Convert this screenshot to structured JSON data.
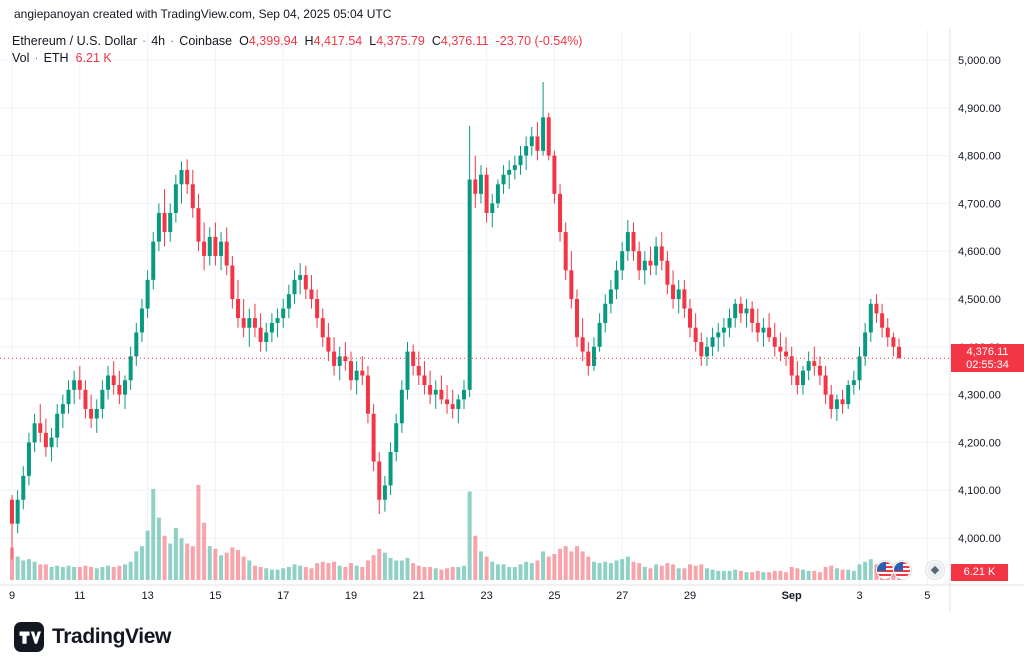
{
  "attribution": "angiepanoyan created with TradingView.com, Sep 04, 2025 05:04 UTC",
  "legend": {
    "symbol": "Ethereum / U.S. Dollar",
    "sep1": "·",
    "interval": "4h",
    "sep2": "·",
    "exchange": "Coinbase",
    "o_label": "O",
    "o_value": "4,399.94",
    "h_label": "H",
    "h_value": "4,417.54",
    "l_label": "L",
    "l_value": "4,375.79",
    "c_label": "C",
    "c_value": "4,376.11",
    "change": "-23.70 (-0.54%)",
    "vol_label": "Vol",
    "vol_sep": "·",
    "vol_symbol": "ETH",
    "vol_value": "6.21 K"
  },
  "badges": {
    "price": "4,376.11",
    "countdown": "02:55:34",
    "volume": "6.21 K"
  },
  "logo_text": "TradingView",
  "chart_data": {
    "type": "candlestick",
    "title": "Ethereum / U.S. Dollar",
    "interval": "4h",
    "exchange": "Coinbase",
    "ylim": [
      4000,
      5000
    ],
    "grid": true,
    "last_price": 4376.11,
    "countdown": "02:55:34",
    "last_volume_label": "6.21 K",
    "volume_units": "K ETH",
    "colors": {
      "up": "#089981",
      "down": "#f23645",
      "volume_up": "rgba(8,153,129,0.45)",
      "volume_down": "rgba(242,54,69,0.45)",
      "grid": "#f0f3fa",
      "border": "#e0e3eb",
      "axis_text": "#131722",
      "badge_bg": "#f23645",
      "last_price_line": "#f23645"
    },
    "price_axis_ticks": [
      {
        "value": 5000,
        "label": "5,000.00"
      },
      {
        "value": 4900,
        "label": "4,900.00"
      },
      {
        "value": 4800,
        "label": "4,800.00"
      },
      {
        "value": 4700,
        "label": "4,700.00"
      },
      {
        "value": 4600,
        "label": "4,600.00"
      },
      {
        "value": 4500,
        "label": "4,500.00"
      },
      {
        "value": 4400,
        "label": "4,400.00"
      },
      {
        "value": 4300,
        "label": "4,300.00"
      },
      {
        "value": 4200,
        "label": "4,200.00"
      },
      {
        "value": 4100,
        "label": "4,100.00"
      },
      {
        "value": 4000,
        "label": "4,000.00"
      }
    ],
    "time_axis_labels": [
      {
        "text": "9",
        "index": 0
      },
      {
        "text": "11",
        "index": 12
      },
      {
        "text": "13",
        "index": 24
      },
      {
        "text": "15",
        "index": 36
      },
      {
        "text": "17",
        "index": 48
      },
      {
        "text": "19",
        "index": 60
      },
      {
        "text": "21",
        "index": 72
      },
      {
        "text": "23",
        "index": 84
      },
      {
        "text": "25",
        "index": 96
      },
      {
        "text": "27",
        "index": 108
      },
      {
        "text": "29",
        "index": 120
      },
      {
        "text": "Sep",
        "index": 138,
        "bold": true
      },
      {
        "text": "3",
        "index": 150
      },
      {
        "text": "5",
        "index": 162
      }
    ],
    "candles": [
      [
        4080,
        4090,
        3955,
        4030,
        25
      ],
      [
        4030,
        4100,
        4010,
        4080,
        18
      ],
      [
        4080,
        4150,
        4060,
        4130,
        15
      ],
      [
        4130,
        4220,
        4110,
        4200,
        16
      ],
      [
        4200,
        4260,
        4180,
        4240,
        14
      ],
      [
        4240,
        4280,
        4200,
        4220,
        12
      ],
      [
        4220,
        4250,
        4170,
        4190,
        12
      ],
      [
        4190,
        4230,
        4160,
        4210,
        10
      ],
      [
        4210,
        4280,
        4190,
        4260,
        11
      ],
      [
        4260,
        4300,
        4230,
        4280,
        10
      ],
      [
        4280,
        4330,
        4260,
        4310,
        11
      ],
      [
        4310,
        4350,
        4280,
        4330,
        10
      ],
      [
        4330,
        4360,
        4290,
        4310,
        10
      ],
      [
        4310,
        4330,
        4250,
        4270,
        11
      ],
      [
        4270,
        4300,
        4230,
        4250,
        10
      ],
      [
        4250,
        4290,
        4220,
        4270,
        9
      ],
      [
        4270,
        4330,
        4250,
        4310,
        10
      ],
      [
        4310,
        4360,
        4290,
        4340,
        11
      ],
      [
        4340,
        4370,
        4300,
        4320,
        10
      ],
      [
        4320,
        4350,
        4280,
        4300,
        11
      ],
      [
        4300,
        4340,
        4270,
        4330,
        12
      ],
      [
        4330,
        4400,
        4310,
        4380,
        14
      ],
      [
        4380,
        4450,
        4360,
        4430,
        22
      ],
      [
        4430,
        4500,
        4410,
        4480,
        26
      ],
      [
        4480,
        4560,
        4460,
        4540,
        38
      ],
      [
        4540,
        4640,
        4520,
        4620,
        70
      ],
      [
        4620,
        4700,
        4600,
        4680,
        48
      ],
      [
        4680,
        4730,
        4610,
        4640,
        34
      ],
      [
        4640,
        4700,
        4620,
        4680,
        28
      ],
      [
        4680,
        4760,
        4660,
        4740,
        40
      ],
      [
        4740,
        4788,
        4700,
        4770,
        32
      ],
      [
        4770,
        4792,
        4720,
        4740,
        28
      ],
      [
        4740,
        4770,
        4670,
        4690,
        26
      ],
      [
        4690,
        4720,
        4600,
        4620,
        73
      ],
      [
        4620,
        4660,
        4560,
        4590,
        44
      ],
      [
        4590,
        4650,
        4570,
        4630,
        26
      ],
      [
        4630,
        4660,
        4570,
        4590,
        24
      ],
      [
        4590,
        4640,
        4560,
        4620,
        19
      ],
      [
        4620,
        4650,
        4550,
        4570,
        21
      ],
      [
        4570,
        4590,
        4480,
        4500,
        25
      ],
      [
        4500,
        4540,
        4440,
        4460,
        23
      ],
      [
        4460,
        4500,
        4420,
        4440,
        18
      ],
      [
        4440,
        4480,
        4400,
        4460,
        15
      ],
      [
        4460,
        4490,
        4420,
        4440,
        11
      ],
      [
        4440,
        4470,
        4390,
        4410,
        10
      ],
      [
        4410,
        4450,
        4390,
        4430,
        9
      ],
      [
        4430,
        4470,
        4410,
        4450,
        8
      ],
      [
        4450,
        4480,
        4420,
        4460,
        8
      ],
      [
        4460,
        4500,
        4440,
        4480,
        9
      ],
      [
        4480,
        4530,
        4460,
        4510,
        10
      ],
      [
        4510,
        4560,
        4490,
        4540,
        12
      ],
      [
        4540,
        4575,
        4510,
        4550,
        11
      ],
      [
        4550,
        4570,
        4500,
        4520,
        10
      ],
      [
        4520,
        4550,
        4480,
        4500,
        9
      ],
      [
        4500,
        4520,
        4440,
        4460,
        13
      ],
      [
        4460,
        4480,
        4400,
        4420,
        14
      ],
      [
        4420,
        4450,
        4370,
        4390,
        13
      ],
      [
        4390,
        4420,
        4340,
        4360,
        14
      ],
      [
        4360,
        4400,
        4330,
        4380,
        11
      ],
      [
        4380,
        4410,
        4350,
        4370,
        10
      ],
      [
        4370,
        4390,
        4310,
        4330,
        13
      ],
      [
        4330,
        4370,
        4300,
        4350,
        11
      ],
      [
        4350,
        4380,
        4320,
        4340,
        10
      ],
      [
        4340,
        4360,
        4240,
        4260,
        15
      ],
      [
        4260,
        4280,
        4140,
        4160,
        19
      ],
      [
        4160,
        4180,
        4050,
        4080,
        24
      ],
      [
        4080,
        4130,
        4055,
        4110,
        21
      ],
      [
        4110,
        4200,
        4090,
        4180,
        17
      ],
      [
        4180,
        4260,
        4160,
        4240,
        15
      ],
      [
        4240,
        4330,
        4220,
        4310,
        15
      ],
      [
        4310,
        4410,
        4290,
        4390,
        17
      ],
      [
        4390,
        4405,
        4340,
        4360,
        13
      ],
      [
        4360,
        4390,
        4320,
        4340,
        11
      ],
      [
        4340,
        4370,
        4300,
        4320,
        10
      ],
      [
        4320,
        4350,
        4280,
        4300,
        10
      ],
      [
        4300,
        4330,
        4270,
        4310,
        9
      ],
      [
        4310,
        4340,
        4280,
        4290,
        8
      ],
      [
        4290,
        4320,
        4260,
        4280,
        9
      ],
      [
        4280,
        4310,
        4250,
        4270,
        10
      ],
      [
        4270,
        4300,
        4240,
        4290,
        10
      ],
      [
        4290,
        4330,
        4270,
        4310,
        11
      ],
      [
        4310,
        4862,
        4295,
        4750,
        68
      ],
      [
        4750,
        4800,
        4690,
        4720,
        34
      ],
      [
        4720,
        4780,
        4700,
        4760,
        22
      ],
      [
        4760,
        4775,
        4660,
        4680,
        18
      ],
      [
        4680,
        4720,
        4650,
        4700,
        14
      ],
      [
        4700,
        4750,
        4690,
        4740,
        12
      ],
      [
        4740,
        4780,
        4720,
        4760,
        12
      ],
      [
        4760,
        4790,
        4730,
        4770,
        10
      ],
      [
        4770,
        4800,
        4750,
        4780,
        10
      ],
      [
        4780,
        4820,
        4760,
        4800,
        12
      ],
      [
        4800,
        4840,
        4770,
        4820,
        14
      ],
      [
        4820,
        4860,
        4800,
        4840,
        13
      ],
      [
        4840,
        4870,
        4790,
        4810,
        15
      ],
      [
        4810,
        4954,
        4800,
        4880,
        22
      ],
      [
        4880,
        4890,
        4790,
        4800,
        18
      ],
      [
        4800,
        4810,
        4700,
        4720,
        20
      ],
      [
        4720,
        4740,
        4620,
        4640,
        24
      ],
      [
        4640,
        4660,
        4540,
        4560,
        26
      ],
      [
        4560,
        4600,
        4480,
        4500,
        22
      ],
      [
        4500,
        4520,
        4400,
        4420,
        26
      ],
      [
        4420,
        4460,
        4370,
        4390,
        22
      ],
      [
        4390,
        4410,
        4340,
        4360,
        18
      ],
      [
        4360,
        4420,
        4350,
        4400,
        14
      ],
      [
        4400,
        4470,
        4390,
        4450,
        13
      ],
      [
        4450,
        4510,
        4430,
        4490,
        14
      ],
      [
        4490,
        4540,
        4470,
        4520,
        13
      ],
      [
        4520,
        4580,
        4500,
        4560,
        15
      ],
      [
        4560,
        4620,
        4540,
        4600,
        16
      ],
      [
        4600,
        4665,
        4580,
        4640,
        18
      ],
      [
        4640,
        4660,
        4580,
        4600,
        14
      ],
      [
        4600,
        4620,
        4540,
        4560,
        13
      ],
      [
        4560,
        4600,
        4530,
        4580,
        10
      ],
      [
        4580,
        4610,
        4550,
        4570,
        9
      ],
      [
        4570,
        4630,
        4550,
        4610,
        12
      ],
      [
        4610,
        4640,
        4560,
        4580,
        11
      ],
      [
        4580,
        4600,
        4510,
        4530,
        13
      ],
      [
        4530,
        4560,
        4480,
        4500,
        12
      ],
      [
        4500,
        4540,
        4470,
        4520,
        9
      ],
      [
        4520,
        4540,
        4460,
        4480,
        9
      ],
      [
        4480,
        4500,
        4420,
        4440,
        12
      ],
      [
        4440,
        4470,
        4390,
        4410,
        11
      ],
      [
        4410,
        4430,
        4360,
        4380,
        12
      ],
      [
        4380,
        4420,
        4360,
        4400,
        9
      ],
      [
        4400,
        4440,
        4380,
        4420,
        8
      ],
      [
        4420,
        4450,
        4390,
        4430,
        7
      ],
      [
        4430,
        4460,
        4400,
        4440,
        7
      ],
      [
        4440,
        4480,
        4420,
        4460,
        7
      ],
      [
        4460,
        4500,
        4440,
        4490,
        8
      ],
      [
        4490,
        4505,
        4450,
        4470,
        7
      ],
      [
        4470,
        4500,
        4440,
        4480,
        6
      ],
      [
        4480,
        4495,
        4430,
        4450,
        6
      ],
      [
        4450,
        4480,
        4410,
        4430,
        7
      ],
      [
        4430,
        4460,
        4400,
        4440,
        6
      ],
      [
        4440,
        4470,
        4410,
        4420,
        6
      ],
      [
        4420,
        4450,
        4380,
        4400,
        7
      ],
      [
        4400,
        4430,
        4370,
        4390,
        7
      ],
      [
        4390,
        4420,
        4360,
        4380,
        6
      ],
      [
        4380,
        4400,
        4320,
        4340,
        10
      ],
      [
        4340,
        4370,
        4300,
        4320,
        9
      ],
      [
        4320,
        4360,
        4300,
        4350,
        8
      ],
      [
        4350,
        4390,
        4330,
        4370,
        7
      ],
      [
        4370,
        4400,
        4340,
        4360,
        7
      ],
      [
        4360,
        4380,
        4320,
        4340,
        6
      ],
      [
        4340,
        4360,
        4280,
        4300,
        10
      ],
      [
        4300,
        4320,
        4250,
        4270,
        11
      ],
      [
        4270,
        4300,
        4245,
        4290,
        9
      ],
      [
        4290,
        4310,
        4260,
        4280,
        8
      ],
      [
        4280,
        4330,
        4270,
        4320,
        8
      ],
      [
        4320,
        4350,
        4300,
        4330,
        7
      ],
      [
        4330,
        4400,
        4310,
        4380,
        12
      ],
      [
        4380,
        4450,
        4360,
        4430,
        14
      ],
      [
        4430,
        4500,
        4410,
        4490,
        16
      ],
      [
        4490,
        4510,
        4450,
        4470,
        12
      ],
      [
        4470,
        4490,
        4420,
        4440,
        10
      ],
      [
        4440,
        4460,
        4400,
        4420,
        9
      ],
      [
        4420,
        4430,
        4380,
        4400,
        8
      ],
      [
        4399.94,
        4417.54,
        4375.79,
        4376.11,
        6.21
      ]
    ]
  }
}
